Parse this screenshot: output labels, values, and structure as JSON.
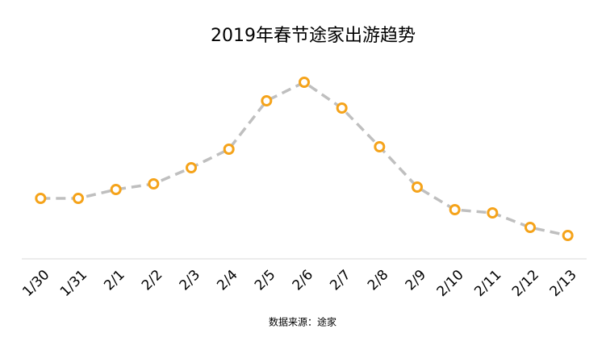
{
  "chart_data": {
    "type": "line",
    "title": "2019年春节途家出游趋势",
    "categories": [
      "1/30",
      "1/31",
      "2/1",
      "2/2",
      "2/3",
      "2/4",
      "2/5",
      "2/6",
      "2/7",
      "2/8",
      "2/9",
      "2/10",
      "2/11",
      "2/12",
      "2/13"
    ],
    "values": [
      75,
      75,
      86,
      93,
      113,
      136,
      196,
      219,
      187,
      139,
      89,
      61,
      57,
      39,
      29
    ],
    "line_color": "#bfbfbf",
    "marker_color": "#f5a31a",
    "dashed": true,
    "ylim": [
      0,
      240
    ],
    "source": "数据来源：途家"
  }
}
